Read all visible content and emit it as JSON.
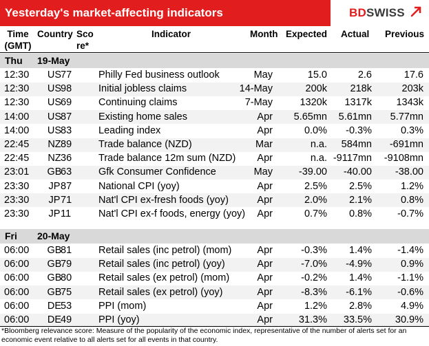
{
  "header": {
    "title": "Yesterday's market-affecting indicators",
    "logo_part1": "BD",
    "logo_part2": "SWISS"
  },
  "columns": {
    "time_line1": "Time",
    "time_line2": "(GMT)",
    "country": "Country",
    "score_line1": "Sco",
    "score_line2": "re*",
    "indicator": "Indicator",
    "month": "Month",
    "expected": "Expected",
    "actual": "Actual",
    "previous": "Previous"
  },
  "groups": [
    {
      "day": "Thu",
      "date": "19-May",
      "rows": [
        {
          "time": "12:30",
          "country": "US",
          "score": "77",
          "indicator": "Philly Fed business outlook",
          "month": "May",
          "expected": "15.0",
          "actual": "2.6",
          "previous": "17.6"
        },
        {
          "time": "12:30",
          "country": "US",
          "score": "98",
          "indicator": "Initial jobless claims",
          "month": "14-May",
          "expected": "200k",
          "actual": "218k",
          "previous": "203k"
        },
        {
          "time": "12:30",
          "country": "US",
          "score": "69",
          "indicator": "Continuing claims",
          "month": "7-May",
          "expected": "1320k",
          "actual": "1317k",
          "previous": "1343k"
        },
        {
          "time": "14:00",
          "country": "US",
          "score": "87",
          "indicator": "Existing home sales",
          "month": "Apr",
          "expected": "5.65mn",
          "actual": "5.61mn",
          "previous": "5.77mn"
        },
        {
          "time": "14:00",
          "country": "US",
          "score": "83",
          "indicator": "Leading index",
          "month": "Apr",
          "expected": "0.0%",
          "actual": "-0.3%",
          "previous": "0.3%"
        },
        {
          "time": "22:45",
          "country": "NZ",
          "score": "89",
          "indicator": "Trade balance (NZD)",
          "month": "Mar",
          "expected": "n.a.",
          "actual": "584mn",
          "previous": "-691mn"
        },
        {
          "time": "22:45",
          "country": "NZ",
          "score": "36",
          "indicator": "Trade balance 12m sum (NZD)",
          "month": "Apr",
          "expected": "n.a.",
          "actual": "-9117mn",
          "previous": "-9108mn"
        },
        {
          "time": "23:01",
          "country": "GB",
          "score": "63",
          "indicator": "Gfk Consumer Confidence",
          "month": "May",
          "expected": "-39.00",
          "actual": "-40.00",
          "previous": "-38.00"
        },
        {
          "time": "23:30",
          "country": "JP",
          "score": "87",
          "indicator": "National CPI (yoy)",
          "month": "Apr",
          "expected": "2.5%",
          "actual": "2.5%",
          "previous": "1.2%"
        },
        {
          "time": "23:30",
          "country": "JP",
          "score": "71",
          "indicator": "Nat'l CPI ex-fresh foods (yoy)",
          "month": "Apr",
          "expected": "2.0%",
          "actual": "2.1%",
          "previous": "0.8%"
        },
        {
          "time": "23:30",
          "country": "JP",
          "score": "11",
          "indicator": "Nat'l CPI ex-f foods, energy (yoy)",
          "month": "Apr",
          "expected": "0.7%",
          "actual": "0.8%",
          "previous": "-0.7%"
        }
      ]
    },
    {
      "day": "Fri",
      "date": "20-May",
      "rows": [
        {
          "time": "06:00",
          "country": "GB",
          "score": "81",
          "indicator": "Retail sales (inc petrol) (mom)",
          "month": "Apr",
          "expected": "-0.3%",
          "actual": "1.4%",
          "previous": "-1.4%"
        },
        {
          "time": "06:00",
          "country": "GB",
          "score": "79",
          "indicator": "Retail sales (inc petrol) (yoy)",
          "month": "Apr",
          "expected": "-7.0%",
          "actual": "-4.9%",
          "previous": "0.9%"
        },
        {
          "time": "06:00",
          "country": "GB",
          "score": "80",
          "indicator": "Retail sales (ex petrol) (mom)",
          "month": "Apr",
          "expected": "-0.2%",
          "actual": "1.4%",
          "previous": "-1.1%"
        },
        {
          "time": "06:00",
          "country": "GB",
          "score": "75",
          "indicator": "Retail sales (ex petrol) (yoy)",
          "month": "Apr",
          "expected": "-8.3%",
          "actual": "-6.1%",
          "previous": "-0.6%"
        },
        {
          "time": "06:00",
          "country": "DE",
          "score": "53",
          "indicator": "PPI (mom)",
          "month": "Apr",
          "expected": "1.2%",
          "actual": "2.8%",
          "previous": "4.9%"
        },
        {
          "time": "06:00",
          "country": "DE",
          "score": "49",
          "indicator": "PPI (yoy)",
          "month": "Apr",
          "expected": "31.3%",
          "actual": "33.5%",
          "previous": "30.9%"
        }
      ]
    }
  ],
  "footnote": "*Bloomberg relevance score: Measure of the popularity of the economic index, representative of the number of alerts set for an economic event relative to all alerts set for all events in that country.",
  "colors": {
    "header_red": "#e21d1d",
    "group_gray": "#d9d9d9",
    "alt_row": "#f2f2f2"
  }
}
